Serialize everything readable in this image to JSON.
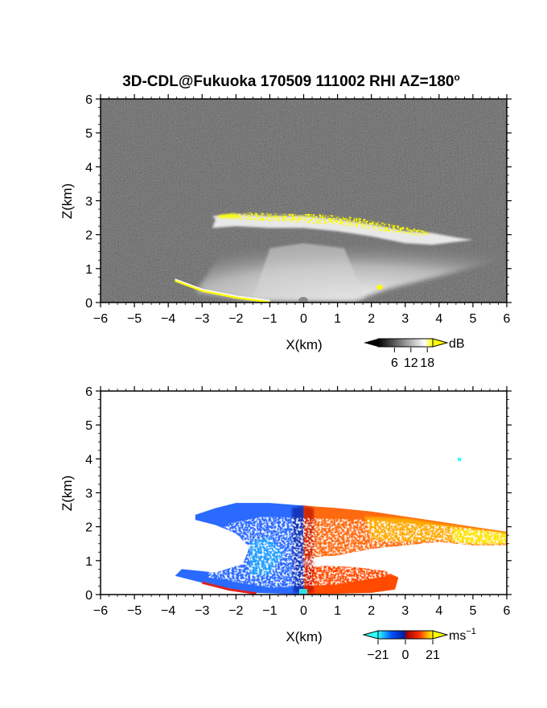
{
  "title": "3D-CDL@Fukuoka 170509 111002 RHI AZ=180",
  "title_degree": "o",
  "chart_data": [
    {
      "type": "heatmap",
      "name": "backscatter",
      "xlabel": "X(km)",
      "ylabel": "Z(km)",
      "xlim": [
        -6,
        6
      ],
      "ylim": [
        0,
        6
      ],
      "xticks": [
        -6,
        -5,
        -4,
        -3,
        -2,
        -1,
        0,
        1,
        2,
        3,
        4,
        5,
        6
      ],
      "yticks": [
        0,
        1,
        2,
        3,
        4,
        5,
        6
      ],
      "colorbar": {
        "unit": "dB",
        "ticks": [
          6,
          12,
          18
        ],
        "range": [
          0,
          20
        ],
        "colors": [
          "#000000",
          "#ffffff",
          "#ffff00"
        ]
      },
      "background_color": "#2a2a2a",
      "features": {
        "cloud_base_top_layer_km": [
          {
            "x": -2.7,
            "z": 2.55
          },
          {
            "x": -2.0,
            "z": 2.6
          },
          {
            "x": -1.0,
            "z": 2.55
          },
          {
            "x": 0.0,
            "z": 2.55
          },
          {
            "x": 1.0,
            "z": 2.45
          },
          {
            "x": 2.0,
            "z": 2.3
          },
          {
            "x": 3.0,
            "z": 2.1
          },
          {
            "x": 3.8,
            "z": 2.05
          }
        ],
        "boundary_layer_top_km": [
          {
            "x": -2.0,
            "z": 2.1
          },
          {
            "x": 0.0,
            "z": 1.9
          },
          {
            "x": 2.0,
            "z": 1.8
          },
          {
            "x": 4.0,
            "z": 1.75
          },
          {
            "x": 6.0,
            "z": 1.65
          }
        ],
        "surface_echo_line_km": [
          {
            "x": -3.8,
            "z": 0.65
          },
          {
            "x": -3.0,
            "z": 0.35
          },
          {
            "x": -2.0,
            "z": 0.15
          },
          {
            "x": -1.0,
            "z": 0.02
          }
        ]
      }
    },
    {
      "type": "heatmap",
      "name": "doppler_velocity",
      "xlabel": "X(km)",
      "ylabel": "Z(km)",
      "xlim": [
        -6,
        6
      ],
      "ylim": [
        0,
        6
      ],
      "xticks": [
        -6,
        -5,
        -4,
        -3,
        -2,
        -1,
        0,
        1,
        2,
        3,
        4,
        5,
        6
      ],
      "yticks": [
        0,
        1,
        2,
        3,
        4,
        5,
        6
      ],
      "colorbar": {
        "unit": "ms",
        "unit_exponent": "−1",
        "ticks": [
          "−21",
          "0",
          "21"
        ],
        "range": [
          -21,
          21
        ],
        "colors": [
          "#30ffff",
          "#0050ff",
          "#0020a0",
          "#a00000",
          "#ff3000",
          "#ffff00"
        ]
      },
      "regions": [
        {
          "label": "approaching",
          "color": "#2060ff",
          "x_from": -3.2,
          "x_to": 0.0,
          "z_from": 0.0,
          "z_to": 2.7
        },
        {
          "label": "receding",
          "color": "#ff6010",
          "x_from": 0.0,
          "x_to": 6.0,
          "z_from": 1.2,
          "z_to": 2.7
        },
        {
          "label": "receding_low",
          "color": "#ff5000",
          "x_from": 0.0,
          "x_to": 2.8,
          "z_from": 0.0,
          "z_to": 0.85
        }
      ],
      "isolated_point": {
        "x": 4.6,
        "z": 3.95
      }
    }
  ]
}
